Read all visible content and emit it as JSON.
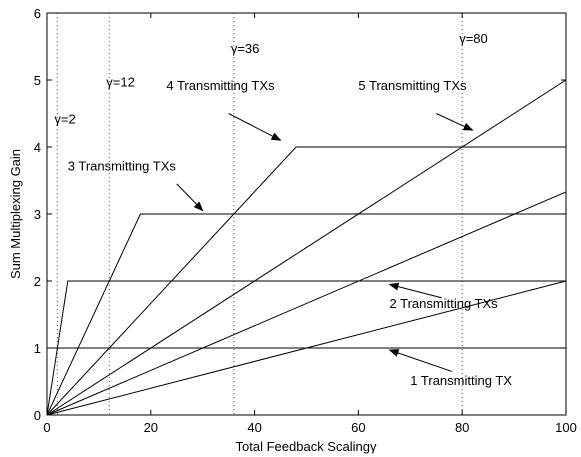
{
  "chart_data": {
    "type": "line",
    "xlabel": "Total Feedback Scalingγ",
    "ylabel": "Sum Multiplexing Gain",
    "xlim": [
      0,
      100
    ],
    "ylim": [
      0,
      6
    ],
    "xticks": [
      0,
      20,
      40,
      60,
      80,
      100
    ],
    "yticks": [
      0,
      1,
      2,
      3,
      4,
      5,
      6
    ],
    "grid": false,
    "series": [
      {
        "x": [
          0,
          100
        ],
        "y": [
          1,
          1
        ]
      },
      {
        "x": [
          0,
          4,
          100
        ],
        "y": [
          0,
          2,
          2
        ]
      },
      {
        "x": [
          0,
          18,
          100
        ],
        "y": [
          0,
          3,
          3
        ]
      },
      {
        "x": [
          0,
          48,
          100
        ],
        "y": [
          0,
          4,
          4
        ]
      },
      {
        "x": [
          0,
          100
        ],
        "y": [
          0,
          5
        ]
      },
      {
        "x": [
          0,
          100
        ],
        "y": [
          0,
          3.33
        ]
      },
      {
        "x": [
          0,
          100
        ],
        "y": [
          0,
          2
        ]
      }
    ],
    "markers": [
      {
        "x": 2,
        "label": "γ=2",
        "label_y": 4.35
      },
      {
        "x": 12,
        "label": "γ=12",
        "label_y": 4.9
      },
      {
        "x": 36,
        "label": "γ=36",
        "label_y": 5.4
      },
      {
        "x": 80,
        "label": "γ=80",
        "label_y": 5.55
      }
    ],
    "annotations": [
      {
        "text": "4 Transmitting TXs",
        "text_x": 23,
        "text_y": 4.85,
        "arrow_from": [
          35,
          4.5
        ],
        "arrow_to": [
          45,
          4.1
        ]
      },
      {
        "text": "5 Transmitting TXs",
        "text_x": 60,
        "text_y": 4.85,
        "arrow_from": [
          75,
          4.5
        ],
        "arrow_to": [
          82,
          4.25
        ]
      },
      {
        "text": "3 Transmitting TXs",
        "text_x": 4,
        "text_y": 3.65,
        "arrow_from": [
          25,
          3.45
        ],
        "arrow_to": [
          30,
          3.05
        ]
      },
      {
        "text": "2 Transmitting TXs",
        "text_x": 66,
        "text_y": 1.6,
        "arrow_from": [
          76,
          1.75
        ],
        "arrow_to": [
          66,
          1.95
        ]
      },
      {
        "text": "1 Transmitting TX",
        "text_x": 70,
        "text_y": 0.45,
        "arrow_from": [
          78,
          0.65
        ],
        "arrow_to": [
          66,
          0.97
        ]
      }
    ]
  }
}
